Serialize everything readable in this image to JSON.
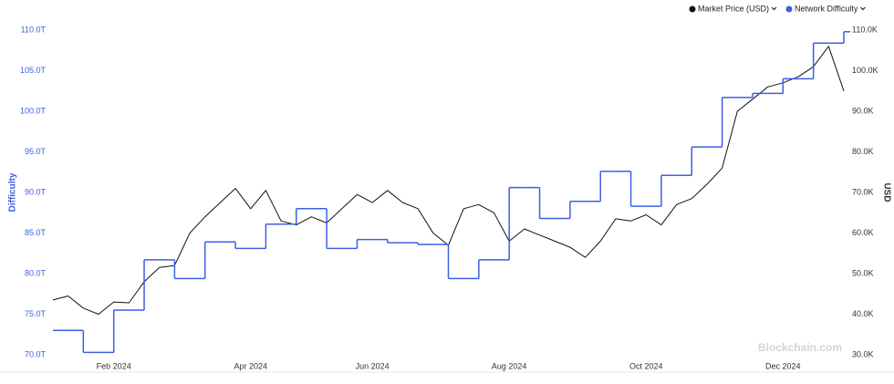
{
  "chart_data": {
    "type": "line",
    "y_label": "Difficulty",
    "y2_label": "USD",
    "watermark": "Blockchain.com",
    "categories": [
      null,
      null,
      null,
      null,
      "Feb 2024",
      null,
      null,
      null,
      null,
      null,
      null,
      null,
      null,
      "Apr 2024",
      null,
      null,
      null,
      null,
      null,
      null,
      null,
      "Jun 2024",
      null,
      null,
      null,
      null,
      null,
      null,
      null,
      null,
      "Aug 2024",
      null,
      null,
      null,
      null,
      null,
      null,
      null,
      null,
      "Oct 2024",
      null,
      null,
      null,
      null,
      null,
      null,
      null,
      null,
      "Dec 2024",
      null,
      null,
      null,
      null
    ],
    "series": [
      {
        "name": "Market Price (USD)",
        "color": "#111111",
        "axis": "y2",
        "values": [
          43500,
          44500,
          41500,
          40000,
          43000,
          42800,
          48000,
          51500,
          52000,
          60000,
          64000,
          67500,
          71000,
          66000,
          70500,
          63000,
          62000,
          64000,
          62500,
          66000,
          69500,
          67500,
          70500,
          67500,
          66000,
          60000,
          57000,
          66000,
          67000,
          65000,
          58000,
          61000,
          59500,
          58000,
          56500,
          54000,
          58000,
          63500,
          63000,
          64500,
          62000,
          67000,
          68500,
          72000,
          76000,
          90000,
          93000,
          96000,
          97000,
          98500,
          101000,
          106000,
          95000
        ]
      },
      {
        "name": "Network Difficulty",
        "color": "#3c5fe6",
        "axis": "y",
        "step": true,
        "values": [
          73.0,
          73.0,
          70.3,
          70.3,
          75.5,
          75.5,
          81.7,
          81.7,
          79.4,
          79.4,
          83.9,
          83.9,
          83.1,
          83.1,
          86.1,
          86.1,
          88.0,
          88.0,
          83.1,
          83.1,
          84.2,
          84.2,
          83.8,
          83.8,
          83.6,
          83.6,
          79.4,
          79.4,
          81.7,
          81.7,
          90.6,
          90.6,
          86.8,
          86.8,
          88.9,
          88.9,
          92.6,
          92.6,
          88.3,
          88.3,
          92.1,
          92.1,
          95.6,
          95.6,
          101.7,
          101.7,
          102.2,
          102.2,
          104.0,
          104.0,
          108.4,
          108.4,
          109.8
        ]
      }
    ],
    "ylim": [
      70,
      110
    ],
    "yticks": [
      {
        "value": 70,
        "label": "70.0T"
      },
      {
        "value": 75,
        "label": "75.0T"
      },
      {
        "value": 80,
        "label": "80.0T"
      },
      {
        "value": 85,
        "label": "85.0T"
      },
      {
        "value": 90,
        "label": "90.0T"
      },
      {
        "value": 95,
        "label": "95.0T"
      },
      {
        "value": 100,
        "label": "100.0T"
      },
      {
        "value": 105,
        "label": "105.0T"
      },
      {
        "value": 110,
        "label": "110.0T"
      }
    ],
    "y2lim": [
      30000,
      110000
    ],
    "y2ticks": [
      {
        "value": 30000,
        "label": "30.0K"
      },
      {
        "value": 40000,
        "label": "40.0K"
      },
      {
        "value": 50000,
        "label": "50.0K"
      },
      {
        "value": 60000,
        "label": "60.0K"
      },
      {
        "value": 70000,
        "label": "70.0K"
      },
      {
        "value": 80000,
        "label": "80.0K"
      },
      {
        "value": 90000,
        "label": "90.0K"
      },
      {
        "value": 100000,
        "label": "100.0K"
      },
      {
        "value": 110000,
        "label": "110.0K"
      }
    ],
    "legend": "top-right",
    "grid": false
  }
}
